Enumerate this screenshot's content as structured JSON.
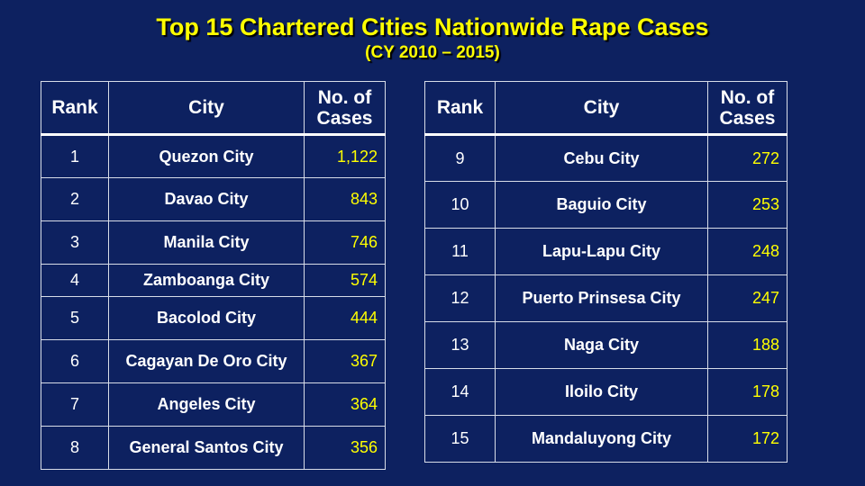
{
  "title": "Top 15 Chartered Cities Nationwide Rape Cases",
  "subtitle": "(CY 2010 – 2015)",
  "headers": {
    "rank": "Rank",
    "city": "City",
    "cases_line1": "No. of",
    "cases_line2": "Cases"
  },
  "table_left": [
    {
      "rank": "1",
      "city": "Quezon City",
      "cases": "1,122"
    },
    {
      "rank": "2",
      "city": "Davao City",
      "cases": "843"
    },
    {
      "rank": "3",
      "city": "Manila City",
      "cases": "746"
    },
    {
      "rank": "4",
      "city": "Zamboanga City",
      "cases": "574"
    },
    {
      "rank": "5",
      "city": "Bacolod City",
      "cases": "444"
    },
    {
      "rank": "6",
      "city": "Cagayan De Oro City",
      "cases": "367"
    },
    {
      "rank": "7",
      "city": "Angeles City",
      "cases": "364"
    },
    {
      "rank": "8",
      "city": "General Santos City",
      "cases": "356"
    }
  ],
  "table_right": [
    {
      "rank": "9",
      "city": "Cebu City",
      "cases": "272"
    },
    {
      "rank": "10",
      "city": "Baguio City",
      "cases": "253"
    },
    {
      "rank": "11",
      "city": "Lapu-Lapu City",
      "cases": "248"
    },
    {
      "rank": "12",
      "city": "Puerto Prinsesa City",
      "cases": "247"
    },
    {
      "rank": "13",
      "city": "Naga City",
      "cases": "188"
    },
    {
      "rank": "14",
      "city": "Iloilo City",
      "cases": "178"
    },
    {
      "rank": "15",
      "city": "Mandaluyong City",
      "cases": "172"
    }
  ],
  "colors": {
    "background": "#0d2160",
    "title": "#ffff00",
    "cases_value": "#ffff00",
    "text": "#ffffff"
  }
}
